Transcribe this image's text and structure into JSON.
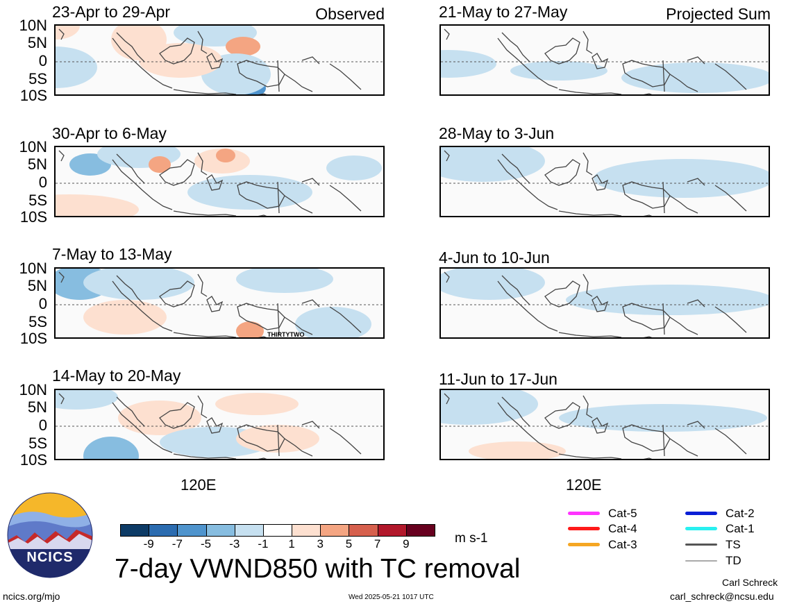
{
  "labels": {
    "observed": "Observed",
    "projected": "Projected Sum",
    "lat_ticks": [
      "10N",
      "5N",
      "0",
      "5S",
      "10S"
    ],
    "lon_tick": "120E",
    "storm_label": "THIRTYTWO"
  },
  "panels_left": [
    {
      "title": "23-Apr to 29-Apr"
    },
    {
      "title": "30-Apr to 6-May"
    },
    {
      "title": "7-May to 13-May"
    },
    {
      "title": "14-May to 20-May"
    }
  ],
  "panels_right": [
    {
      "title": "21-May to 27-May"
    },
    {
      "title": "28-May to 3-Jun"
    },
    {
      "title": "4-Jun to 10-Jun"
    },
    {
      "title": "11-Jun to 17-Jun"
    }
  ],
  "colorbar": {
    "colors": [
      "#0d3b66",
      "#2b6cb0",
      "#4f94cd",
      "#87bde0",
      "#c6e0f0",
      "#ffffff",
      "#fde0d0",
      "#f4a582",
      "#d6604d",
      "#b2182b",
      "#67001f"
    ],
    "ticks": [
      "-9",
      "-7",
      "-5",
      "-3",
      "-1",
      "1",
      "3",
      "5",
      "7",
      "9"
    ],
    "units": "m s-1"
  },
  "legend": {
    "items": [
      {
        "label": "Cat-5",
        "color": "#ff33ff"
      },
      {
        "label": "Cat-4",
        "color": "#ff1a1a"
      },
      {
        "label": "Cat-3",
        "color": "#f5a623"
      },
      {
        "label": "Cat-2",
        "color": "#0a1fd6"
      },
      {
        "label": "Cat-1",
        "color": "#29f0f0"
      },
      {
        "label": "TS",
        "color": "#555555"
      },
      {
        "label": "TD",
        "color": "#aaaaaa"
      }
    ]
  },
  "logo": {
    "text": "NCICS"
  },
  "footer": {
    "main_title": "7-day VWND850 with TC removal",
    "website": "ncics.org/mjo",
    "timestamp": "Wed 2025-05-21 1017 UTC",
    "author": "Carl Schreck",
    "email": "carl_schreck@ncsu.edu"
  }
}
